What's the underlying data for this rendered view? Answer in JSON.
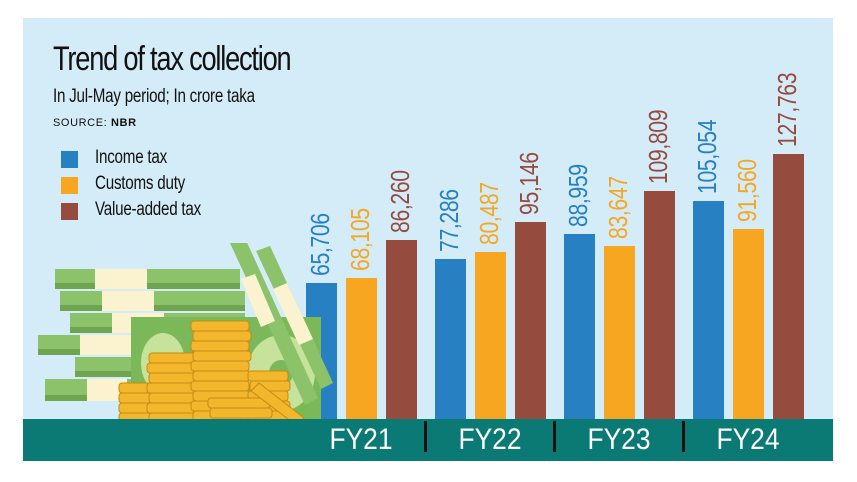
{
  "header": {
    "title": "Trend of tax collection",
    "subtitle": "In Jul-May period; In crore taka",
    "source_prefix": "SOURCE: ",
    "source_name": "NBR"
  },
  "legend": [
    {
      "label": "Income tax",
      "color": "#2680c2"
    },
    {
      "label": "Customs duty",
      "color": "#f6a620"
    },
    {
      "label": "Value-added tax",
      "color": "#964b3f"
    }
  ],
  "colors": {
    "background": "#d4ecf8",
    "axis_band": "#0b7a74",
    "income_tax": "#2680c2",
    "customs_duty": "#f6a620",
    "vat": "#964b3f"
  },
  "chart_data": {
    "type": "bar",
    "title": "Trend of tax collection",
    "subtitle": "In Jul-May period; In crore taka",
    "source": "NBR",
    "xlabel": "",
    "ylabel": "In crore taka",
    "categories": [
      "FY21",
      "FY22",
      "FY23",
      "FY24"
    ],
    "series": [
      {
        "name": "Income tax",
        "color": "#2680c2",
        "values": [
          65706,
          77286,
          88959,
          105054
        ],
        "labels": [
          "65,706",
          "77,286",
          "88,959",
          "105,054"
        ]
      },
      {
        "name": "Customs duty",
        "color": "#f6a620",
        "values": [
          68105,
          80487,
          83647,
          91560
        ],
        "labels": [
          "68,105",
          "80,487",
          "83,647",
          "91,560"
        ]
      },
      {
        "name": "Value-added tax",
        "color": "#964b3f",
        "values": [
          86260,
          95146,
          109809,
          127763
        ],
        "labels": [
          "86,260",
          "95,146",
          "109,809",
          "127,763"
        ]
      }
    ],
    "legend_position": "top-left",
    "grid": false,
    "ylim": [
      0,
      130000
    ],
    "data_labels": "rotated-vertical"
  }
}
